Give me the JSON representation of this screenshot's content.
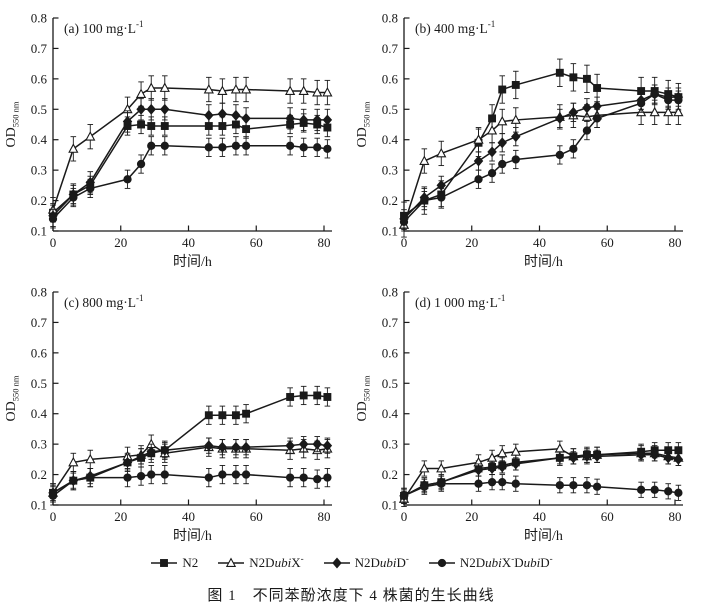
{
  "figure": {
    "caption": "图 1　不同苯酚浓度下 4 株菌的生长曲线"
  },
  "axes": {
    "xlabel": "时间/h",
    "ylabel_main": "OD",
    "ylabel_sub": "550 nm",
    "xticks": [
      0,
      20,
      40,
      60,
      80
    ],
    "yticks": [
      0.1,
      0.2,
      0.3,
      0.4,
      0.5,
      0.6,
      0.7,
      0.8
    ],
    "xlim": [
      0,
      82
    ],
    "ylim": [
      0.1,
      0.8
    ],
    "grid": false,
    "legend_position": "bottom-center",
    "line_color": "#1a1a1a"
  },
  "series_defs": [
    {
      "key": "N2",
      "marker": "square",
      "fill": "filled",
      "label_parts": [
        {
          "t": "N2"
        }
      ]
    },
    {
      "key": "N2DubiX",
      "marker": "triangle",
      "fill": "open",
      "label_parts": [
        {
          "t": "N2D"
        },
        {
          "t": "ubi",
          "i": 1
        },
        {
          "t": "X"
        },
        {
          "t": "-",
          "sup": 1
        }
      ]
    },
    {
      "key": "N2DubiD",
      "marker": "diamond",
      "fill": "filled",
      "label_parts": [
        {
          "t": "N2D"
        },
        {
          "t": "ubi",
          "i": 1
        },
        {
          "t": "D"
        },
        {
          "t": "-",
          "sup": 1
        }
      ]
    },
    {
      "key": "N2DubiXDubiD",
      "marker": "circle",
      "fill": "filled",
      "label_parts": [
        {
          "t": "N2D"
        },
        {
          "t": "ubi",
          "i": 1
        },
        {
          "t": "X"
        },
        {
          "t": "-",
          "sup": 1
        },
        {
          "t": "D"
        },
        {
          "t": "ubi",
          "i": 1
        },
        {
          "t": "D"
        },
        {
          "t": "-",
          "sup": 1
        }
      ]
    }
  ],
  "chart_data": [
    {
      "type": "line",
      "panel": "a",
      "title_main": "(a) 100 mg·L",
      "title_sup": "-1",
      "x": [
        0,
        6,
        11,
        22,
        26,
        29,
        33,
        46,
        50,
        54,
        57,
        70,
        74,
        78,
        81
      ],
      "series": [
        {
          "name": "N2",
          "err": 0.03,
          "values": [
            0.16,
            0.22,
            0.25,
            0.445,
            0.45,
            0.445,
            0.445,
            0.445,
            0.445,
            0.45,
            0.435,
            0.45,
            0.455,
            0.45,
            0.44
          ]
        },
        {
          "name": "N2DubiX",
          "err": 0.04,
          "values": [
            0.17,
            0.37,
            0.41,
            0.5,
            0.55,
            0.57,
            0.57,
            0.565,
            0.56,
            0.565,
            0.565,
            0.56,
            0.56,
            0.555,
            0.555
          ]
        },
        {
          "name": "N2DubiD",
          "err": 0.035,
          "values": [
            0.15,
            0.22,
            0.26,
            0.46,
            0.5,
            0.5,
            0.5,
            0.48,
            0.485,
            0.48,
            0.47,
            0.47,
            0.465,
            0.465,
            0.465
          ]
        },
        {
          "name": "N2DubiXDubiD",
          "err": 0.03,
          "values": [
            0.14,
            0.21,
            0.24,
            0.27,
            0.32,
            0.38,
            0.38,
            0.375,
            0.375,
            0.38,
            0.38,
            0.38,
            0.375,
            0.375,
            0.37
          ]
        }
      ]
    },
    {
      "type": "line",
      "panel": "b",
      "title_main": "(b) 400 mg·L",
      "title_sup": "-1",
      "x": [
        0,
        6,
        11,
        22,
        26,
        29,
        33,
        46,
        50,
        54,
        57,
        70,
        74,
        78,
        81
      ],
      "series": [
        {
          "name": "N2",
          "err": 0.045,
          "values": [
            0.15,
            0.2,
            0.22,
            0.39,
            0.47,
            0.565,
            0.58,
            0.62,
            0.605,
            0.6,
            0.57,
            0.56,
            0.56,
            0.55,
            0.54
          ]
        },
        {
          "name": "N2DubiX",
          "err": 0.04,
          "values": [
            0.12,
            0.33,
            0.355,
            0.4,
            0.43,
            0.46,
            0.465,
            0.475,
            0.48,
            0.475,
            0.48,
            0.49,
            0.49,
            0.49,
            0.49
          ]
        },
        {
          "name": "N2DubiD",
          "err": 0.03,
          "values": [
            0.14,
            0.21,
            0.25,
            0.33,
            0.36,
            0.39,
            0.41,
            0.47,
            0.49,
            0.505,
            0.51,
            0.53,
            0.55,
            0.54,
            0.54
          ]
        },
        {
          "name": "N2DubiXDubiD",
          "err": 0.03,
          "values": [
            0.13,
            0.2,
            0.21,
            0.27,
            0.29,
            0.32,
            0.335,
            0.35,
            0.37,
            0.43,
            0.47,
            0.52,
            0.55,
            0.53,
            0.53
          ]
        }
      ]
    },
    {
      "type": "line",
      "panel": "c",
      "title_main": "(c) 800 mg·L",
      "title_sup": "-1",
      "x": [
        0,
        6,
        11,
        22,
        26,
        29,
        33,
        46,
        50,
        54,
        57,
        70,
        74,
        78,
        81
      ],
      "series": [
        {
          "name": "N2",
          "err": 0.03,
          "values": [
            0.14,
            0.18,
            0.19,
            0.24,
            0.255,
            0.27,
            0.28,
            0.395,
            0.395,
            0.395,
            0.4,
            0.455,
            0.46,
            0.46,
            0.455
          ]
        },
        {
          "name": "N2DubiX",
          "err": 0.03,
          "values": [
            0.14,
            0.24,
            0.25,
            0.26,
            0.265,
            0.3,
            0.27,
            0.29,
            0.285,
            0.285,
            0.285,
            0.28,
            0.285,
            0.28,
            0.285
          ]
        },
        {
          "name": "N2DubiD",
          "err": 0.025,
          "values": [
            0.14,
            0.18,
            0.195,
            0.24,
            0.26,
            0.275,
            0.28,
            0.295,
            0.29,
            0.29,
            0.29,
            0.295,
            0.3,
            0.3,
            0.295
          ]
        },
        {
          "name": "N2DubiXDubiD",
          "err": 0.03,
          "values": [
            0.13,
            0.18,
            0.19,
            0.19,
            0.195,
            0.2,
            0.2,
            0.19,
            0.2,
            0.2,
            0.2,
            0.19,
            0.19,
            0.185,
            0.19
          ]
        }
      ]
    },
    {
      "type": "line",
      "panel": "d",
      "title_main": "(d) 1 000 mg·L",
      "title_sup": "-1",
      "x": [
        0,
        6,
        11,
        22,
        26,
        29,
        33,
        46,
        50,
        54,
        57,
        70,
        74,
        78,
        81
      ],
      "series": [
        {
          "name": "N2",
          "err": 0.025,
          "values": [
            0.13,
            0.165,
            0.175,
            0.22,
            0.225,
            0.23,
            0.24,
            0.255,
            0.26,
            0.265,
            0.265,
            0.275,
            0.28,
            0.28,
            0.28
          ]
        },
        {
          "name": "N2DubiX",
          "err": 0.025,
          "values": [
            0.12,
            0.22,
            0.22,
            0.24,
            0.255,
            0.27,
            0.275,
            0.285,
            0.26,
            0.26,
            0.265,
            0.27,
            0.27,
            0.26,
            0.255
          ]
        },
        {
          "name": "N2DubiD",
          "err": 0.02,
          "values": [
            0.13,
            0.165,
            0.175,
            0.215,
            0.22,
            0.225,
            0.235,
            0.255,
            0.255,
            0.26,
            0.26,
            0.265,
            0.265,
            0.255,
            0.25
          ]
        },
        {
          "name": "N2DubiXDubiD",
          "err": 0.025,
          "values": [
            0.13,
            0.16,
            0.17,
            0.17,
            0.175,
            0.175,
            0.17,
            0.165,
            0.165,
            0.165,
            0.16,
            0.15,
            0.15,
            0.145,
            0.14
          ]
        }
      ]
    }
  ]
}
